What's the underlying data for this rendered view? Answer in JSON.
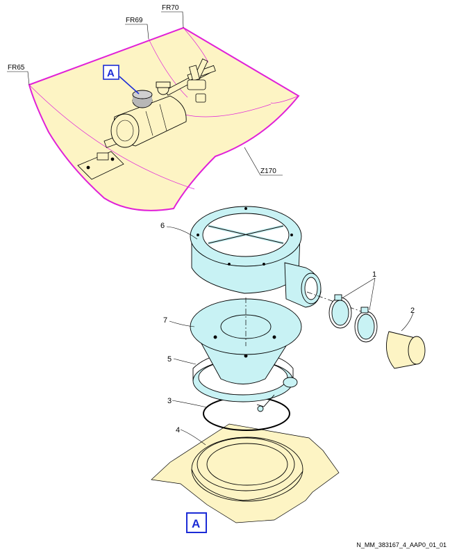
{
  "frame_labels": {
    "fr65": "FR65",
    "fr69": "FR69",
    "fr70": "FR70",
    "z170": "Z170"
  },
  "view_marker": {
    "detail": "A",
    "title": "A"
  },
  "callouts": {
    "c1": "1",
    "c2": "2",
    "c3": "3",
    "c4": "4",
    "c5": "5",
    "c6": "6",
    "c7": "7"
  },
  "reference": "N_MM_383167_4_AAP0_01_01",
  "colors": {
    "magenta_outline": "#e020d8",
    "cream_fill": "#fdf4c4",
    "cyan_part": "#c8f2f4",
    "view_blue": "#1b2bd6"
  }
}
